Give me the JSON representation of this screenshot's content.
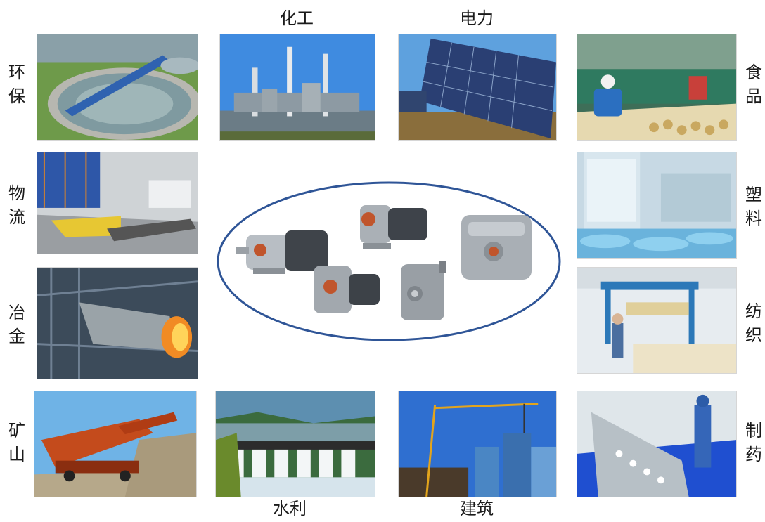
{
  "industries": {
    "chemical": "化工",
    "power": "电力",
    "environmental": "环保",
    "food": "食品",
    "logistics": "物流",
    "plastics": "塑料",
    "metallurgy": "冶金",
    "textile": "纺织",
    "mining": "矿山",
    "pharmaceutical": "制药",
    "water_conservancy": "水利",
    "construction": "建筑"
  },
  "colors": {
    "ellipse_border": "#2f5597",
    "label_text": "#1a1a1a"
  }
}
